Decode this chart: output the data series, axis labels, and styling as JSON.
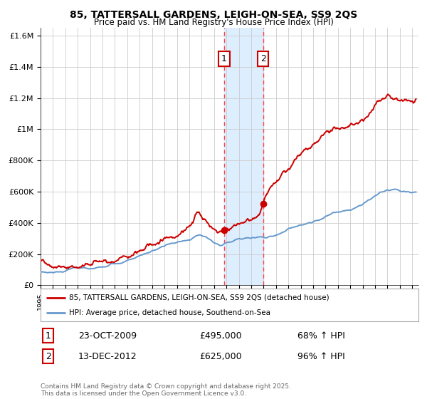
{
  "title_line1": "85, TATTERSALL GARDENS, LEIGH-ON-SEA, SS9 2QS",
  "title_line2": "Price paid vs. HM Land Registry's House Price Index (HPI)",
  "red_label": "85, TATTERSALL GARDENS, LEIGH-ON-SEA, SS9 2QS (detached house)",
  "blue_label": "HPI: Average price, detached house, Southend-on-Sea",
  "sale1_date": "23-OCT-2009",
  "sale1_price": 495000,
  "sale1_pct": "68% ↑ HPI",
  "sale1_year": 2009.81,
  "sale2_date": "13-DEC-2012",
  "sale2_price": 625000,
  "sale2_pct": "96% ↑ HPI",
  "sale2_year": 2012.96,
  "ylabel_values": [
    "£0",
    "£200K",
    "£400K",
    "£600K",
    "£800K",
    "£1M",
    "£1.2M",
    "£1.4M",
    "£1.6M"
  ],
  "ytick_values": [
    0,
    200000,
    400000,
    600000,
    800000,
    1000000,
    1200000,
    1400000,
    1600000
  ],
  "ylim": [
    0,
    1650000
  ],
  "xlim_start": 1995,
  "xlim_end": 2025.5,
  "background_color": "#ffffff",
  "plot_bg_color": "#ffffff",
  "grid_color": "#cccccc",
  "red_color": "#cc0000",
  "blue_color": "#6699cc",
  "shade_color": "#ddeeff",
  "dashed_color": "#ff4444",
  "footnote": "Contains HM Land Registry data © Crown copyright and database right 2025.\nThis data is licensed under the Open Government Licence v3.0."
}
